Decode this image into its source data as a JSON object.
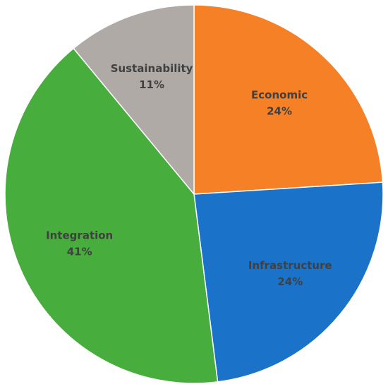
{
  "chart_data": {
    "type": "pie",
    "categories": [
      "Economic",
      "Infrastructure",
      "Integration",
      "Sustainability"
    ],
    "values": [
      24,
      24,
      41,
      11
    ],
    "value_labels": [
      "24%",
      "24%",
      "41%",
      "11%"
    ],
    "colors": [
      "#f58025",
      "#1b73c9",
      "#47ad3c",
      "#b0aaa6"
    ]
  }
}
